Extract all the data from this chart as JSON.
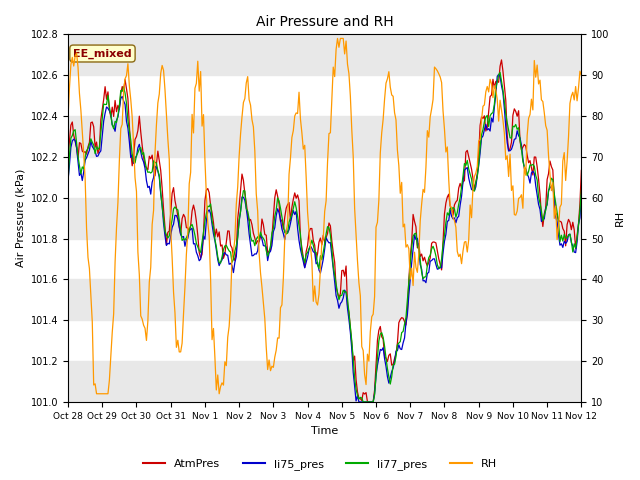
{
  "title": "Air Pressure and RH",
  "xlabel": "Time",
  "ylabel_left": "Air Pressure (kPa)",
  "ylabel_right": "RH",
  "ylim_left": [
    101.0,
    102.8
  ],
  "ylim_right": [
    10,
    100
  ],
  "yticks_left": [
    101.0,
    101.2,
    101.4,
    101.6,
    101.8,
    102.0,
    102.2,
    102.4,
    102.6,
    102.8
  ],
  "yticks_right": [
    10,
    20,
    30,
    40,
    50,
    60,
    70,
    80,
    90,
    100
  ],
  "xticklabels": [
    "Oct 28",
    "Oct 29",
    "Oct 30",
    "Oct 31",
    "Nov 1",
    "Nov 2",
    "Nov 3",
    "Nov 4",
    "Nov 5",
    "Nov 6",
    "Nov 7",
    "Nov 8",
    "Nov 9",
    "Nov 10",
    "Nov 11",
    "Nov 12"
  ],
  "annotation_text": "EE_mixed",
  "colors": {
    "AtmPres": "#cc0000",
    "li75_pres": "#0000cc",
    "li77_pres": "#00aa00",
    "RH": "#ff9900"
  },
  "legend_labels": [
    "AtmPres",
    "li75_pres",
    "li77_pres",
    "RH"
  ],
  "background_color": "#ffffff",
  "band_color": "#e8e8e8"
}
